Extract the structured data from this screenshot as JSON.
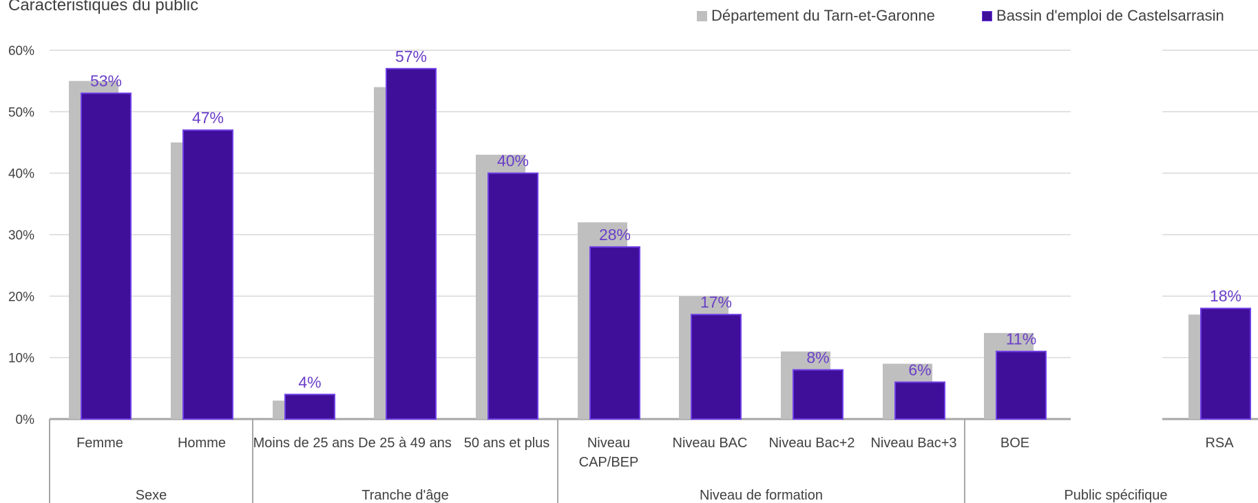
{
  "title": "Caractéristiques du public",
  "colors": {
    "departement": "#bfbfbf",
    "bassin": "#3f0f9a",
    "bassin_stroke": "#6f3fe6",
    "label": "#6a3fc8",
    "grid": "#d9d9d9",
    "axis": "#a6a6a6"
  },
  "chart_data": {
    "type": "bar",
    "ylim": [
      0,
      0.6
    ],
    "yticks": [
      "0%",
      "10%",
      "20%",
      "30%",
      "40%",
      "50%",
      "60%"
    ],
    "legend_position": "top-right",
    "groups": [
      {
        "name": "Sexe",
        "categories": [
          {
            "label": [
              "Femme"
            ],
            "departement": 0.55,
            "bassin": 0.53,
            "bassin_label": "53%"
          },
          {
            "label": [
              "Homme"
            ],
            "departement": 0.45,
            "bassin": 0.47,
            "bassin_label": "47%"
          }
        ]
      },
      {
        "name": "Tranche d'âge",
        "categories": [
          {
            "label": [
              "Moins de 25 ans"
            ],
            "departement": 0.03,
            "bassin": 0.04,
            "bassin_label": "4%"
          },
          {
            "label": [
              "De 25 à 49 ans"
            ],
            "departement": 0.54,
            "bassin": 0.57,
            "bassin_label": "57%"
          },
          {
            "label": [
              "50 ans et plus"
            ],
            "departement": 0.43,
            "bassin": 0.4,
            "bassin_label": "40%"
          }
        ]
      },
      {
        "name": "Niveau de formation",
        "categories": [
          {
            "label": [
              "Niveau",
              "CAP/BEP"
            ],
            "departement": 0.32,
            "bassin": 0.28,
            "bassin_label": "28%"
          },
          {
            "label": [
              "Niveau BAC"
            ],
            "departement": 0.2,
            "bassin": 0.17,
            "bassin_label": "17%"
          },
          {
            "label": [
              "Niveau Bac+2"
            ],
            "departement": 0.11,
            "bassin": 0.08,
            "bassin_label": "8%"
          },
          {
            "label": [
              "Niveau Bac+3"
            ],
            "departement": 0.09,
            "bassin": 0.06,
            "bassin_label": "6%"
          }
        ]
      },
      {
        "name": "Public spécifique",
        "categories": [
          {
            "label": [
              "BOE"
            ],
            "departement": 0.14,
            "bassin": 0.11,
            "bassin_label": "11%"
          },
          {
            "label": [
              "RSA"
            ],
            "departement": 0.17,
            "bassin": 0.18,
            "bassin_label": "18%"
          }
        ]
      }
    ],
    "series": [
      {
        "name": "Département du Tarn-et-Garonne",
        "key": "departement"
      },
      {
        "name": "Bassin d'emploi de Castelsarrasin",
        "key": "bassin"
      }
    ]
  }
}
